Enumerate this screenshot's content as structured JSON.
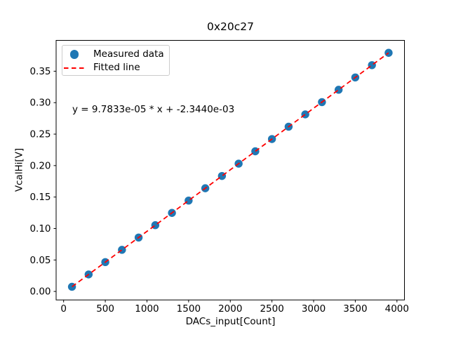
{
  "figure": {
    "background": "#ffffff",
    "text_color": "#000000"
  },
  "chart_data": {
    "type": "scatter",
    "title": "0x20c27",
    "xlabel": "DACs_input[Count]",
    "ylabel": "VcalHi[V]",
    "xlim": [
      -90,
      4090
    ],
    "ylim": [
      -0.0135,
      0.399
    ],
    "xticks": [
      0,
      500,
      1000,
      1500,
      2000,
      2500,
      3000,
      3500,
      4000
    ],
    "yticks": [
      0.0,
      0.05,
      0.1,
      0.15,
      0.2,
      0.25,
      0.3,
      0.35
    ],
    "grid": false,
    "legend_position": "upper left",
    "series": [
      {
        "name": "Measured data",
        "type": "scatter",
        "color": "#1f77b4",
        "x": [
          100,
          300,
          500,
          700,
          900,
          1100,
          1300,
          1500,
          1700,
          1900,
          2100,
          2300,
          2500,
          2700,
          2900,
          3100,
          3300,
          3500,
          3700,
          3900
        ],
        "y": [
          0.0074,
          0.027,
          0.0466,
          0.0661,
          0.0857,
          0.1053,
          0.1248,
          0.1444,
          0.164,
          0.1835,
          0.2031,
          0.2227,
          0.2422,
          0.2618,
          0.2814,
          0.3009,
          0.3205,
          0.3401,
          0.3596,
          0.3792
        ]
      },
      {
        "name": "Fitted line",
        "type": "line",
        "linestyle": "dashed",
        "color": "#ff0000",
        "slope": 9.7833e-05,
        "intercept": -0.002344,
        "x_start": 100,
        "x_end": 3900
      }
    ],
    "annotation": {
      "text": "y = 9.7833e-05 * x + -2.3440e-03"
    }
  }
}
